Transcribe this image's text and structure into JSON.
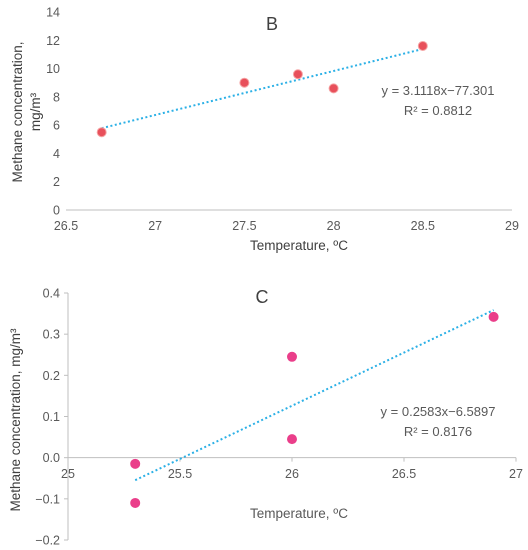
{
  "chart_data": [
    {
      "type": "scatter",
      "title": "B",
      "xlabel": "Temperature, ºC",
      "ylabel_line1": "Methane concentration,",
      "ylabel_line2": "mg/m³",
      "xlim": [
        26.5,
        29
      ],
      "ylim": [
        0,
        14
      ],
      "x_ticks": [
        "26.5",
        "27",
        "27.5",
        "28",
        "28.5",
        "29"
      ],
      "y_ticks": [
        "0",
        "2",
        "4",
        "6",
        "8",
        "10",
        "12",
        "14"
      ],
      "grid": false,
      "points": [
        {
          "x": 26.7,
          "y": 5.5
        },
        {
          "x": 27.5,
          "y": 9.0
        },
        {
          "x": 27.8,
          "y": 9.6
        },
        {
          "x": 28.0,
          "y": 8.6
        },
        {
          "x": 28.5,
          "y": 11.6
        }
      ],
      "trendline": {
        "slope": 3.1118,
        "intercept": -77.301,
        "x_range": [
          26.7,
          28.5
        ]
      },
      "equation": "y = 3.1118x−77.301",
      "r2": "R² = 0.8812"
    },
    {
      "type": "scatter",
      "title": "C",
      "xlabel": "Temperature, ºC",
      "ylabel": "Methane concentration, mg/m³",
      "xlim": [
        25,
        27
      ],
      "ylim": [
        -0.2,
        0.4
      ],
      "x_ticks": [
        "25",
        "25.5",
        "26",
        "26.5",
        "27"
      ],
      "y_ticks": [
        "−0.2",
        "−0.1",
        "0.0",
        "0.1",
        "0.2",
        "0.3",
        "0.4"
      ],
      "grid": false,
      "points": [
        {
          "x": 25.3,
          "y": -0.015
        },
        {
          "x": 25.3,
          "y": -0.11
        },
        {
          "x": 26.0,
          "y": 0.245
        },
        {
          "x": 26.0,
          "y": 0.045
        },
        {
          "x": 26.9,
          "y": 0.342
        }
      ],
      "trendline": {
        "slope": 0.2583,
        "intercept": -6.5897,
        "x_range": [
          25.3,
          26.9
        ]
      },
      "equation": "y = 0.2583x−6.5897",
      "r2": "R² = 0.8176"
    }
  ]
}
